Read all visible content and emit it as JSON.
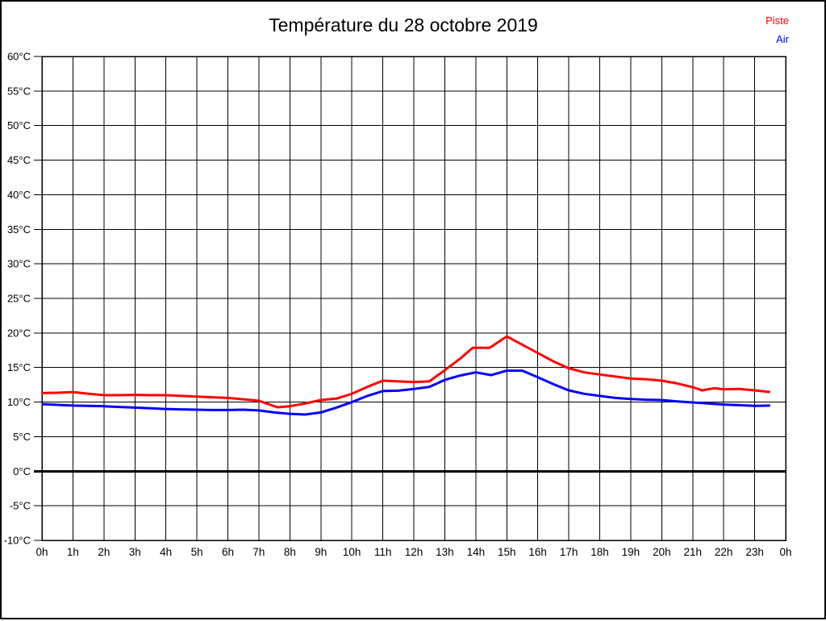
{
  "chart_data": {
    "type": "line",
    "title": "Température du 28 octobre 2019",
    "xlabel": "",
    "ylabel": "",
    "x_unit": "h",
    "y_unit": "°C",
    "xlim": [
      0,
      24
    ],
    "ylim": [
      -10,
      60
    ],
    "grid": true,
    "zero_line": {
      "value": 0,
      "color": "#000000",
      "width": 3
    },
    "legend_position": "top-right",
    "x_ticks": [
      {
        "v": 0,
        "label": "0h"
      },
      {
        "v": 1,
        "label": "1h"
      },
      {
        "v": 2,
        "label": "2h"
      },
      {
        "v": 3,
        "label": "3h"
      },
      {
        "v": 4,
        "label": "4h"
      },
      {
        "v": 5,
        "label": "5h"
      },
      {
        "v": 6,
        "label": "6h"
      },
      {
        "v": 7,
        "label": "7h"
      },
      {
        "v": 8,
        "label": "8h"
      },
      {
        "v": 9,
        "label": "9h"
      },
      {
        "v": 10,
        "label": "10h"
      },
      {
        "v": 11,
        "label": "11h"
      },
      {
        "v": 12,
        "label": "12h"
      },
      {
        "v": 13,
        "label": "13h"
      },
      {
        "v": 14,
        "label": "14h"
      },
      {
        "v": 15,
        "label": "15h"
      },
      {
        "v": 16,
        "label": "16h"
      },
      {
        "v": 17,
        "label": "17h"
      },
      {
        "v": 18,
        "label": "18h"
      },
      {
        "v": 19,
        "label": "19h"
      },
      {
        "v": 20,
        "label": "20h"
      },
      {
        "v": 21,
        "label": "21h"
      },
      {
        "v": 22,
        "label": "22h"
      },
      {
        "v": 23,
        "label": "23h"
      },
      {
        "v": 24,
        "label": "0h"
      }
    ],
    "y_ticks": [
      {
        "v": 60,
        "label": "60°C"
      },
      {
        "v": 55,
        "label": "55°C"
      },
      {
        "v": 50,
        "label": "50°C"
      },
      {
        "v": 45,
        "label": "45°C"
      },
      {
        "v": 40,
        "label": "40°C"
      },
      {
        "v": 35,
        "label": "35°C"
      },
      {
        "v": 30,
        "label": "30°C"
      },
      {
        "v": 25,
        "label": "25°C"
      },
      {
        "v": 20,
        "label": "20°C"
      },
      {
        "v": 15,
        "label": "15°C"
      },
      {
        "v": 10,
        "label": "10°C"
      },
      {
        "v": 5,
        "label": "5°C"
      },
      {
        "v": 0,
        "label": "0°C"
      },
      {
        "v": -5,
        "label": "-5°C"
      },
      {
        "v": -10,
        "label": "-10°C"
      }
    ],
    "series": [
      {
        "name": "Piste",
        "color": "#ff0000",
        "points": [
          [
            0,
            11.3
          ],
          [
            0.5,
            11.35
          ],
          [
            1,
            11.45
          ],
          [
            1.5,
            11.2
          ],
          [
            2,
            11.0
          ],
          [
            2.5,
            11.0
          ],
          [
            3,
            11.05
          ],
          [
            3.5,
            11.0
          ],
          [
            4,
            11.0
          ],
          [
            4.5,
            10.9
          ],
          [
            5,
            10.8
          ],
          [
            5.5,
            10.7
          ],
          [
            6,
            10.6
          ],
          [
            6.5,
            10.4
          ],
          [
            7,
            10.2
          ],
          [
            7.6,
            9.25
          ],
          [
            8,
            9.4
          ],
          [
            8.5,
            9.8
          ],
          [
            9,
            10.3
          ],
          [
            9.5,
            10.5
          ],
          [
            10,
            11.2
          ],
          [
            10.5,
            12.2
          ],
          [
            11,
            13.1
          ],
          [
            11.5,
            13.0
          ],
          [
            12,
            12.9
          ],
          [
            12.5,
            13.0
          ],
          [
            13,
            14.6
          ],
          [
            13.5,
            16.3
          ],
          [
            13.9,
            17.85
          ],
          [
            14.45,
            17.85
          ],
          [
            15,
            19.5
          ],
          [
            15.5,
            18.3
          ],
          [
            16,
            17.1
          ],
          [
            16.5,
            15.9
          ],
          [
            17,
            14.9
          ],
          [
            17.5,
            14.3
          ],
          [
            18,
            14.0
          ],
          [
            18.5,
            13.7
          ],
          [
            19,
            13.4
          ],
          [
            19.5,
            13.3
          ],
          [
            20,
            13.1
          ],
          [
            20.5,
            12.7
          ],
          [
            21,
            12.15
          ],
          [
            21.3,
            11.7
          ],
          [
            21.7,
            12.0
          ],
          [
            22,
            11.85
          ],
          [
            22.5,
            11.9
          ],
          [
            23,
            11.7
          ],
          [
            23.5,
            11.45
          ]
        ]
      },
      {
        "name": "Air",
        "color": "#0000ff",
        "points": [
          [
            0,
            9.7
          ],
          [
            0.5,
            9.6
          ],
          [
            1,
            9.5
          ],
          [
            1.5,
            9.45
          ],
          [
            2,
            9.4
          ],
          [
            2.5,
            9.3
          ],
          [
            3,
            9.2
          ],
          [
            3.5,
            9.1
          ],
          [
            4,
            9.0
          ],
          [
            4.5,
            8.95
          ],
          [
            5,
            8.9
          ],
          [
            5.5,
            8.85
          ],
          [
            6,
            8.85
          ],
          [
            6.5,
            8.9
          ],
          [
            7,
            8.8
          ],
          [
            7.5,
            8.5
          ],
          [
            8,
            8.3
          ],
          [
            8.5,
            8.2
          ],
          [
            9,
            8.5
          ],
          [
            9.5,
            9.2
          ],
          [
            10,
            10.0
          ],
          [
            10.5,
            10.9
          ],
          [
            11,
            11.6
          ],
          [
            11.5,
            11.65
          ],
          [
            12,
            11.9
          ],
          [
            12.5,
            12.2
          ],
          [
            13,
            13.2
          ],
          [
            13.5,
            13.85
          ],
          [
            14,
            14.3
          ],
          [
            14.5,
            13.9
          ],
          [
            15,
            14.55
          ],
          [
            15.5,
            14.55
          ],
          [
            16,
            13.6
          ],
          [
            16.5,
            12.6
          ],
          [
            17,
            11.7
          ],
          [
            17.5,
            11.2
          ],
          [
            18,
            10.9
          ],
          [
            18.5,
            10.6
          ],
          [
            19,
            10.45
          ],
          [
            19.5,
            10.35
          ],
          [
            20,
            10.3
          ],
          [
            20.5,
            10.1
          ],
          [
            21,
            9.95
          ],
          [
            21.5,
            9.8
          ],
          [
            22,
            9.65
          ],
          [
            22.5,
            9.55
          ],
          [
            23,
            9.45
          ],
          [
            23.5,
            9.5
          ]
        ]
      }
    ]
  }
}
